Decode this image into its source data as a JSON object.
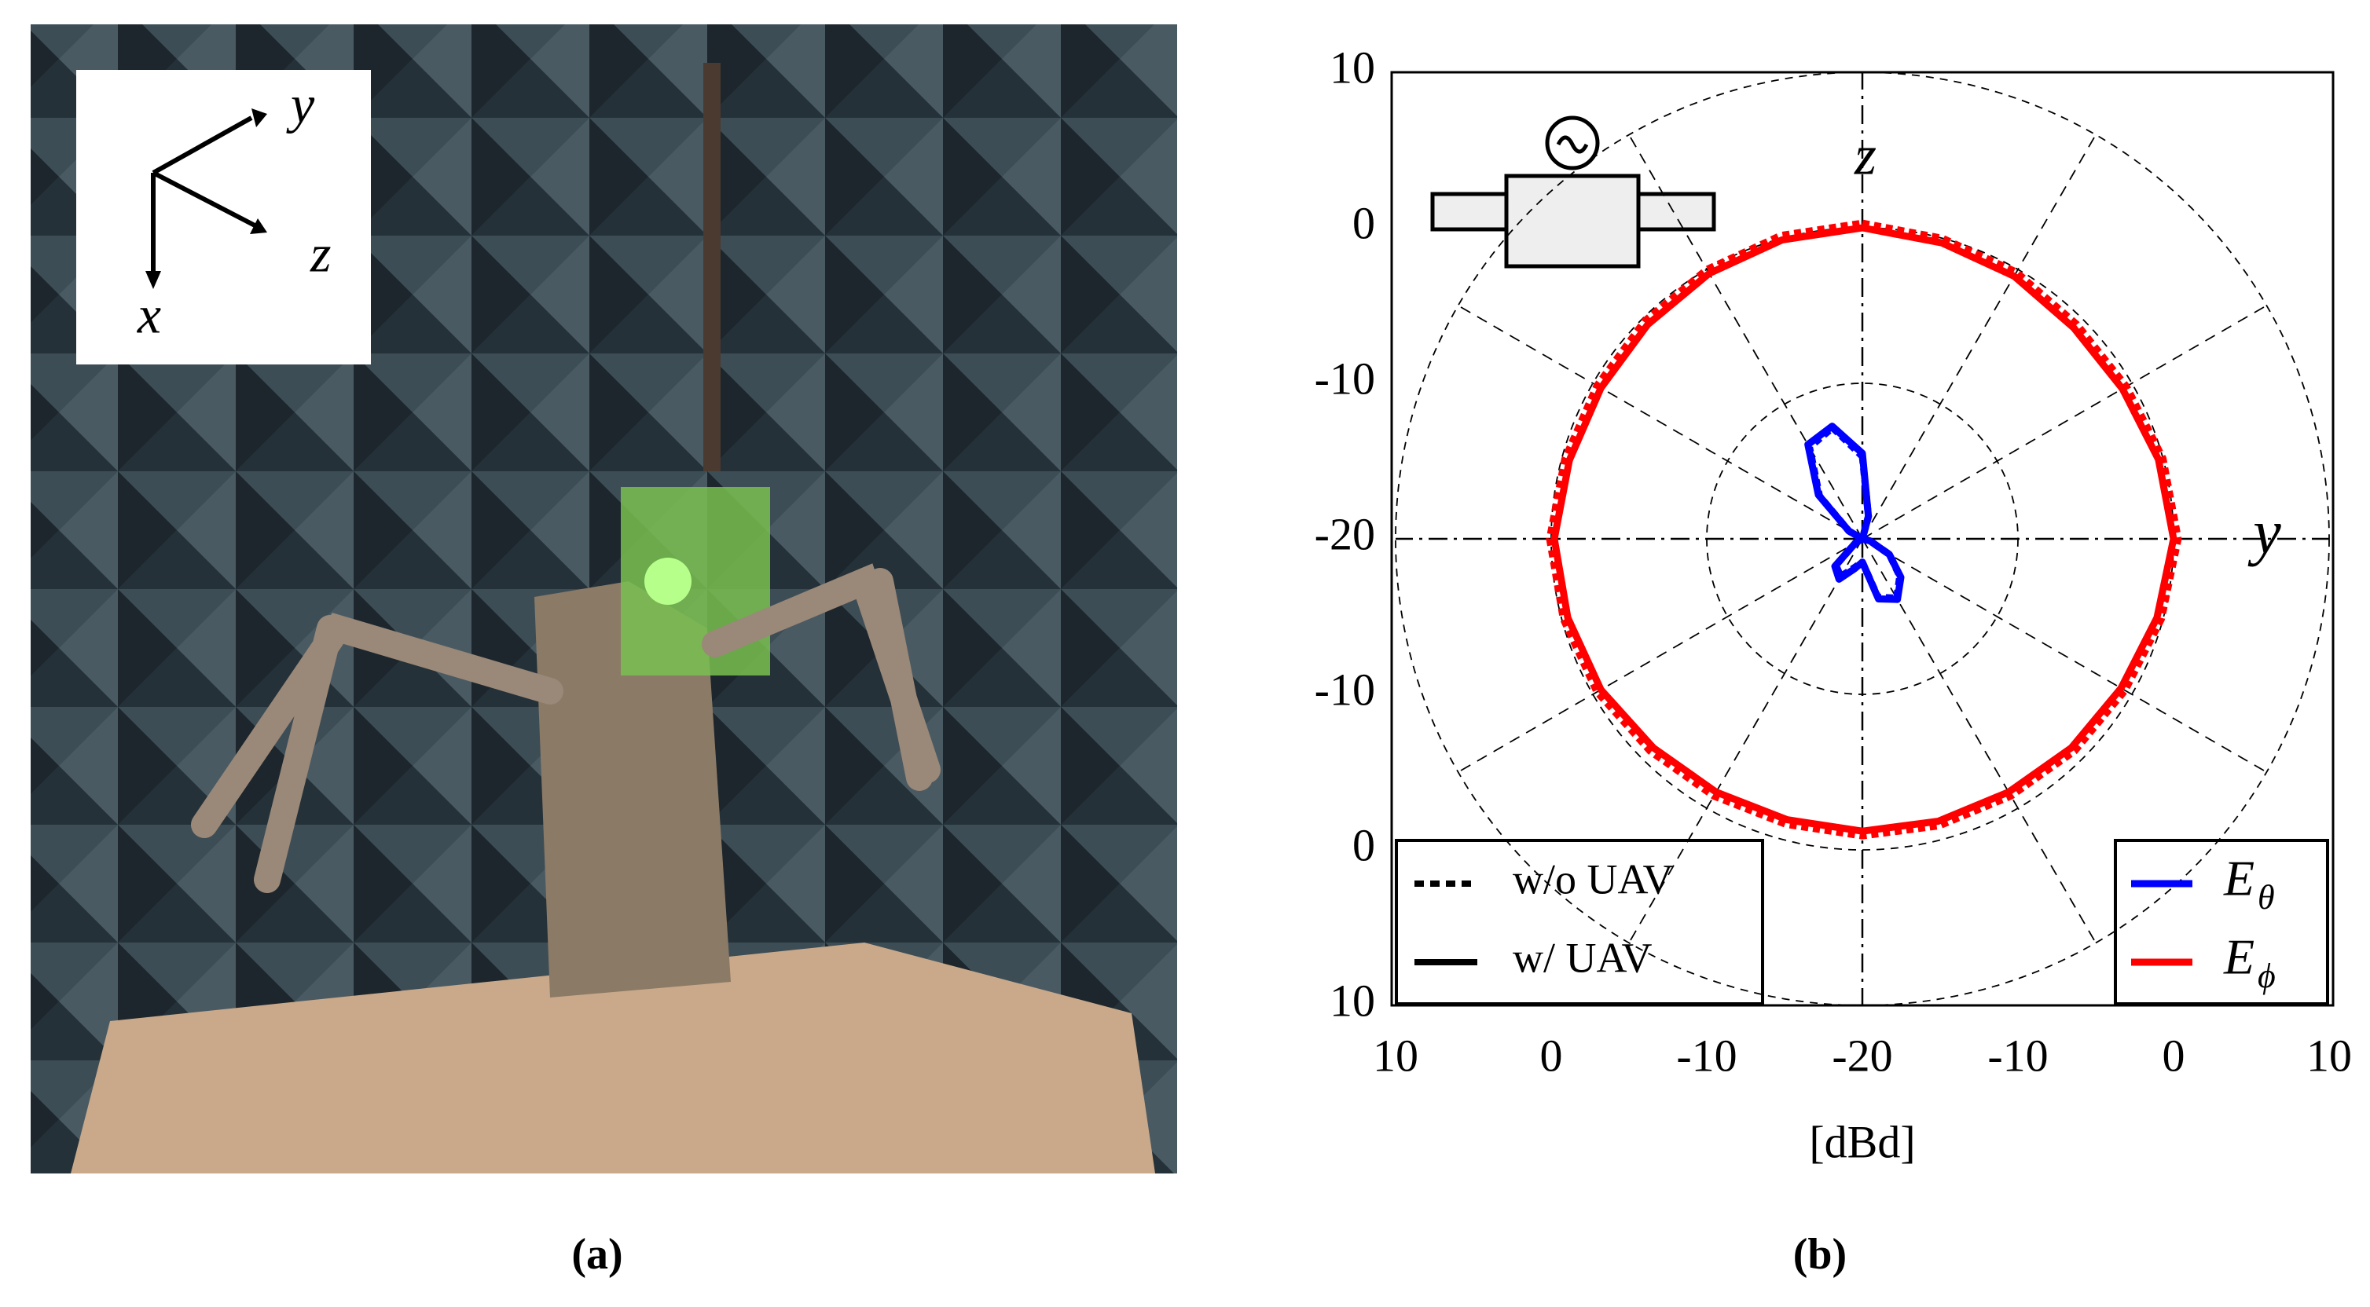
{
  "photo": {
    "axis_labels": [
      "y",
      "z",
      "x"
    ]
  },
  "captions": [
    "(a)",
    "(b)"
  ],
  "chart_data": {
    "type": "polar",
    "axis_labels": [
      "z",
      "y"
    ],
    "xlabel": "[dBd]",
    "rlim": [
      -20,
      10
    ],
    "rticks": [
      -20,
      -10,
      0,
      10
    ],
    "angles": [
      0,
      15,
      30,
      45,
      60,
      75,
      90,
      105,
      120,
      135,
      150,
      165,
      180,
      195,
      210,
      225,
      240,
      255,
      270,
      285,
      300,
      315,
      330,
      345
    ],
    "legend_style": [
      {
        "label": "w/o UAV",
        "dash": "dotted"
      },
      {
        "label": "w/ UAV",
        "dash": "solid"
      }
    ],
    "legend_color": [
      {
        "symbol": "E",
        "subscript": "θ",
        "color": "#0000ff"
      },
      {
        "symbol": "E",
        "subscript": "ϕ",
        "color": "#ff0000"
      }
    ],
    "series": [
      {
        "color_entry": 1,
        "style_entry": 0,
        "values": [
          0.3,
          0,
          -0.2,
          -0.5,
          -0.4,
          0,
          0.3,
          -0.1,
          -0.5,
          -0.7,
          -0.9,
          -0.9,
          -0.9,
          -1,
          -0.9,
          -0.7,
          -0.3,
          -0.1,
          0.1,
          -0.2,
          -0.3,
          -0.2,
          0,
          0.2
        ]
      },
      {
        "color_entry": 1,
        "style_entry": 1,
        "values": [
          0,
          -0.3,
          -0.5,
          -0.8,
          -0.7,
          -0.3,
          0,
          -0.4,
          -0.8,
          -1,
          -1.2,
          -1.2,
          -1.2,
          -1.3,
          -1.2,
          -1,
          -0.6,
          -0.4,
          -0.2,
          -0.5,
          -0.6,
          -0.5,
          -0.3,
          -0.1
        ]
      },
      {
        "color_entry": 0,
        "style_entry": 0,
        "values": [
          -14.7,
          -18.5,
          -20,
          -20,
          -20,
          -20,
          -20,
          -19.5,
          -18,
          -16.6,
          -15.6,
          -16.1,
          -18.5,
          -18.1,
          -17.2,
          -17.6,
          -19.5,
          -20,
          -20,
          -20,
          -19,
          -16.1,
          -13.2,
          -12.6
        ]
      },
      {
        "color_entry": 0,
        "style_entry": 1,
        "values": [
          -14.5,
          -18.5,
          -20,
          -20,
          -20,
          -20,
          -20,
          -19.5,
          -18,
          -16.5,
          -15.5,
          -16,
          -18.5,
          -18,
          -17,
          -17.5,
          -19.5,
          -20,
          -20,
          -20,
          -19,
          -16,
          -13,
          -12.5
        ]
      }
    ]
  }
}
